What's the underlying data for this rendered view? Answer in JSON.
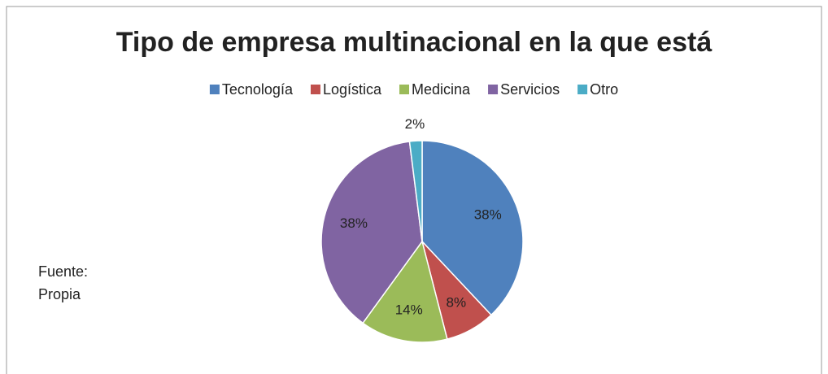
{
  "chart_data": {
    "type": "pie",
    "title": "Tipo de empresa multinacional en la que está",
    "categories": [
      "Tecnología",
      "Logística",
      "Medicina",
      "Servicios",
      "Otro"
    ],
    "values": [
      38,
      8,
      14,
      38,
      2
    ],
    "value_labels": [
      "38%",
      "8%",
      "14%",
      "38%",
      "2%"
    ],
    "colors": [
      "#4f81bd",
      "#c0504d",
      "#9bbb59",
      "#8064a2",
      "#4bacc6"
    ],
    "legend": "top",
    "source": "Fuente: Propia"
  }
}
